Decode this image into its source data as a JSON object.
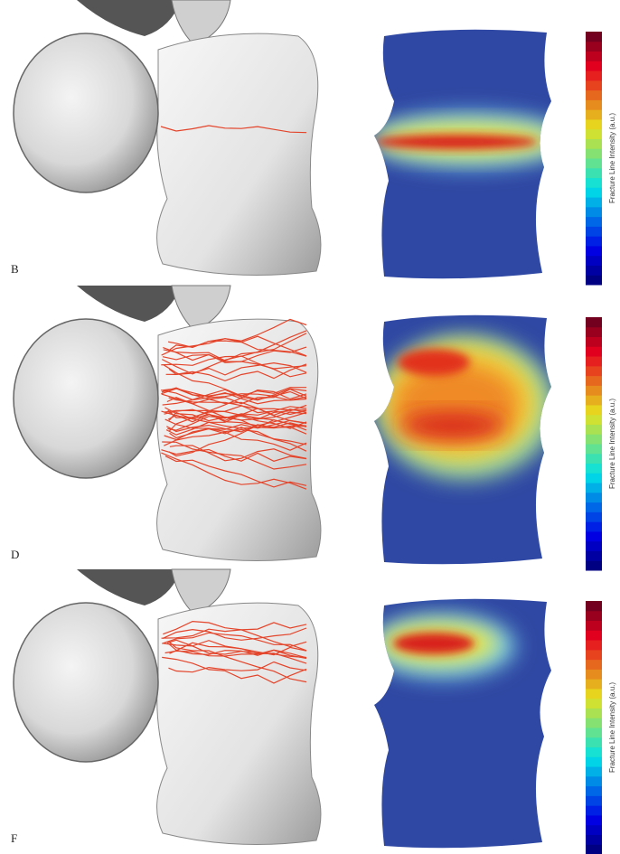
{
  "panels": [
    {
      "label": "B",
      "colorbar_label": "Fracture Line Intensity (a.u.)"
    },
    {
      "label": "D",
      "colorbar_label": "Fracture Line Intensity (a.u.)"
    },
    {
      "label": "F",
      "colorbar_label": "Fracture Line Intensity (a.u.)"
    }
  ]
}
